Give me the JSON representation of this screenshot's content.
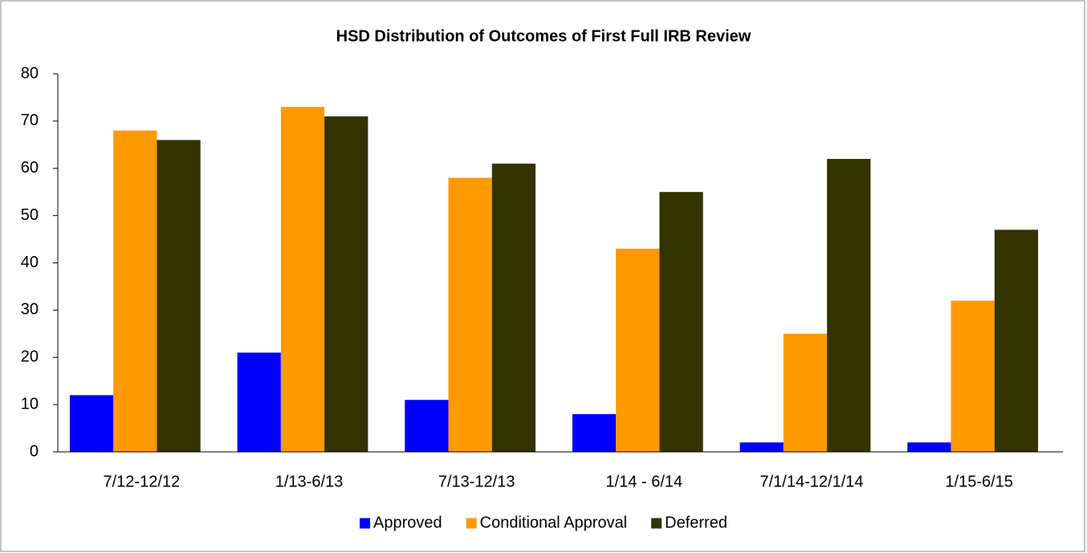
{
  "chart_data": {
    "type": "bar",
    "title": "HSD Distribution of Outcomes of First Full IRB Review",
    "categories": [
      "7/12-12/12",
      "1/13-6/13",
      "7/13-12/13",
      "1/14 - 6/14",
      "7/1/14-12/1/14",
      "1/15-6/15"
    ],
    "series": [
      {
        "name": "Approved",
        "color": "#0000ff",
        "values": [
          12,
          21,
          11,
          8,
          2,
          2
        ]
      },
      {
        "name": "Conditional Approval",
        "color": "#ff9900",
        "values": [
          68,
          73,
          58,
          43,
          25,
          32
        ]
      },
      {
        "name": "Deferred",
        "color": "#333300",
        "values": [
          66,
          71,
          61,
          55,
          62,
          47
        ]
      }
    ],
    "ylim": [
      0,
      80
    ],
    "yticks": [
      0,
      10,
      20,
      30,
      40,
      50,
      60,
      70,
      80
    ],
    "grid": false,
    "legend": "bottom"
  }
}
